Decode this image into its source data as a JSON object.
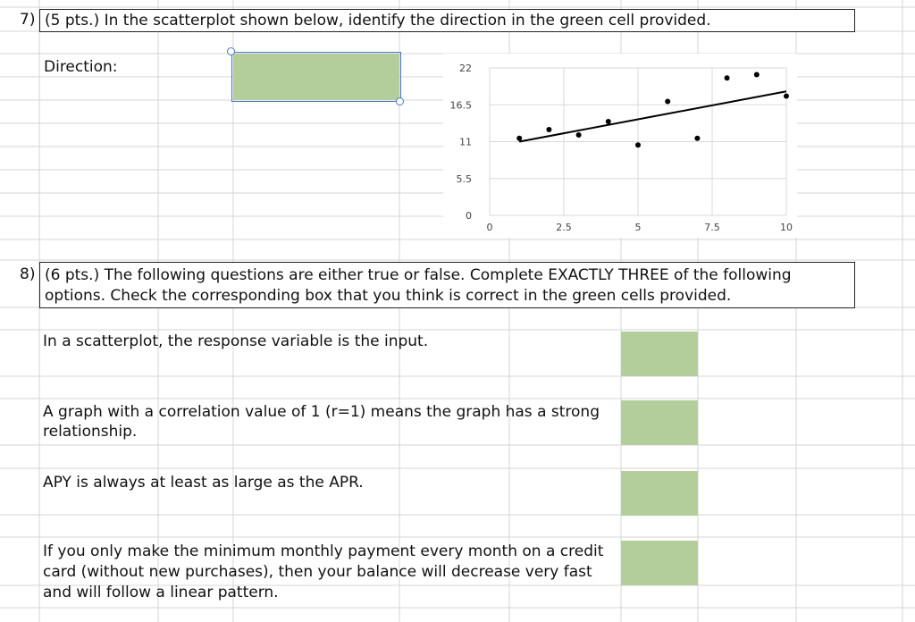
{
  "q7": {
    "number": "7)",
    "prompt": "(5 pts.) In the scatterplot shown below, identify the direction in the green cell provided.",
    "direction_label": "Direction:",
    "direction_value": ""
  },
  "q8": {
    "number": "8)",
    "prompt_line1": "(6 pts.) The following questions are either true or false. Complete EXACTLY THREE of the following",
    "prompt_line2": "options. Check the corresponding box that you think is correct in the green cells provided.",
    "statements": [
      {
        "text": "In a scatterplot, the response variable is the input."
      },
      {
        "text": "A graph with a correlation value of 1 (r=1) means the graph has a strong relationship."
      },
      {
        "text": "APY is always at least as large as the APR."
      },
      {
        "text": "If you only make the minimum monthly payment every month on a credit card (without new purchases), then your balance will decrease very fast and will follow a linear pattern."
      }
    ]
  },
  "colors": {
    "answer_cell": "#b3cd9b",
    "selection": "#4a76c6",
    "gridline": "#d4d4d4"
  },
  "chart_data": {
    "type": "scatter",
    "title": "",
    "xlabel": "",
    "ylabel": "",
    "xlim": [
      0,
      10
    ],
    "ylim": [
      0,
      22
    ],
    "x_ticks": [
      "0",
      "2.5",
      "5",
      "7.5",
      "10"
    ],
    "y_ticks": [
      "22",
      "16.5",
      "11",
      "5.5",
      "0"
    ],
    "points": [
      {
        "x": 1,
        "y": 11.5
      },
      {
        "x": 2,
        "y": 12.8
      },
      {
        "x": 3,
        "y": 12.0
      },
      {
        "x": 4,
        "y": 14.0
      },
      {
        "x": 5,
        "y": 10.5
      },
      {
        "x": 6,
        "y": 17.0
      },
      {
        "x": 7,
        "y": 11.5
      },
      {
        "x": 8,
        "y": 20.5
      },
      {
        "x": 9,
        "y": 21.0
      },
      {
        "x": 10,
        "y": 17.8
      }
    ],
    "trendline": {
      "x0": 1,
      "y0": 11.0,
      "x1": 10,
      "y1": 18.5
    },
    "grid": true,
    "legend": "none"
  }
}
